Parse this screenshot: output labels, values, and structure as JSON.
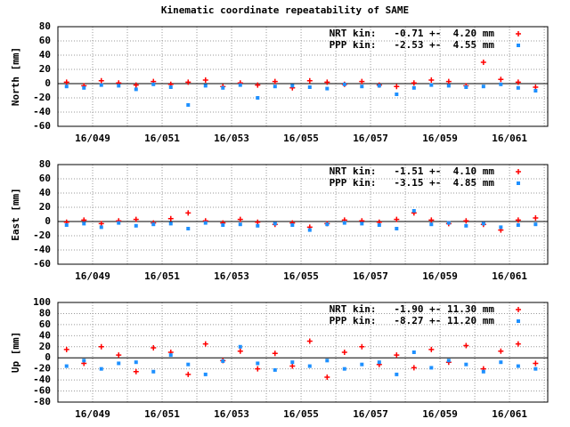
{
  "title": "Kinematic coordinate repeatability of SAME",
  "chart_data": [
    {
      "type": "scatter",
      "ylabel": "North [mm]",
      "x": [
        48.25,
        48.75,
        49.25,
        49.75,
        50.25,
        50.75,
        51.25,
        51.75,
        52.25,
        52.75,
        53.25,
        53.75,
        54.25,
        54.75,
        55.25,
        55.75,
        56.25,
        56.75,
        57.25,
        57.75,
        58.25,
        58.75,
        59.25,
        59.75,
        60.25,
        60.75,
        61.25,
        61.75
      ],
      "xlim": [
        48,
        62.1
      ],
      "xticks": [
        {
          "value": 49,
          "label": "16/049"
        },
        {
          "value": 51,
          "label": "16/051"
        },
        {
          "value": 53,
          "label": "16/053"
        },
        {
          "value": 55,
          "label": "16/055"
        },
        {
          "value": 57,
          "label": "16/057"
        },
        {
          "value": 59,
          "label": "16/059"
        },
        {
          "value": 61,
          "label": "16/061"
        }
      ],
      "x_minor_ticks": [
        50,
        52,
        54,
        56,
        58,
        60,
        62
      ],
      "ylim": [
        -60,
        80
      ],
      "yticks": [
        -60,
        -40,
        -20,
        0,
        20,
        40,
        60,
        80
      ],
      "grid": true,
      "series": [
        {
          "name": "NRT kin:   -0.71 +-  4.20 mm",
          "color": "#ff0000",
          "marker": "plus",
          "values": [
            2,
            -3,
            4,
            1,
            -2,
            3,
            -1,
            2,
            5,
            -4,
            1,
            -2,
            3,
            -6,
            4,
            2,
            -1,
            3,
            -2,
            -4,
            1,
            5,
            3,
            -3,
            30,
            6,
            2,
            -5
          ]
        },
        {
          "name": "PPP kin:   -2.53 +-  4.55 mm",
          "color": "#1e90ff",
          "marker": "square",
          "values": [
            -4,
            -6,
            -2,
            -3,
            -8,
            -1,
            -5,
            -30,
            -3,
            -6,
            -2,
            -20,
            -4,
            -3,
            -5,
            -7,
            -1,
            -4,
            -3,
            -15,
            -6,
            -2,
            -3,
            -5,
            -4,
            -1,
            -6,
            -10
          ]
        }
      ]
    },
    {
      "type": "scatter",
      "ylabel": "East [mm]",
      "x": [
        48.25,
        48.75,
        49.25,
        49.75,
        50.25,
        50.75,
        51.25,
        51.75,
        52.25,
        52.75,
        53.25,
        53.75,
        54.25,
        54.75,
        55.25,
        55.75,
        56.25,
        56.75,
        57.25,
        57.75,
        58.25,
        58.75,
        59.25,
        59.75,
        60.25,
        60.75,
        61.25,
        61.75
      ],
      "xlim": [
        48,
        62.1
      ],
      "xticks": [
        {
          "value": 49,
          "label": "16/049"
        },
        {
          "value": 51,
          "label": "16/051"
        },
        {
          "value": 53,
          "label": "16/053"
        },
        {
          "value": 55,
          "label": "16/055"
        },
        {
          "value": 57,
          "label": "16/057"
        },
        {
          "value": 59,
          "label": "16/059"
        },
        {
          "value": 61,
          "label": "16/061"
        }
      ],
      "x_minor_ticks": [
        50,
        52,
        54,
        56,
        58,
        60,
        62
      ],
      "ylim": [
        -60,
        80
      ],
      "yticks": [
        -60,
        -40,
        -20,
        0,
        20,
        40,
        60,
        80
      ],
      "grid": true,
      "series": [
        {
          "name": "NRT kin:   -1.51 +-  4.10 mm",
          "color": "#ff0000",
          "marker": "plus",
          "values": [
            -1,
            2,
            -3,
            1,
            3,
            -2,
            4,
            12,
            1,
            -2,
            3,
            -1,
            -4,
            -2,
            -8,
            -3,
            2,
            1,
            -1,
            3,
            12,
            2,
            -3,
            1,
            -4,
            -12,
            2,
            5
          ]
        },
        {
          "name": "PPP kin:   -3.15 +-  4.85 mm",
          "color": "#1e90ff",
          "marker": "square",
          "values": [
            -5,
            -3,
            -8,
            -2,
            -6,
            -4,
            -3,
            -10,
            -2,
            -5,
            -4,
            -6,
            -3,
            -5,
            -12,
            -4,
            -2,
            -3,
            -5,
            -10,
            15,
            -4,
            -2,
            -6,
            -3,
            -8,
            -5,
            -4
          ]
        }
      ]
    },
    {
      "type": "scatter",
      "ylabel": "Up [mm]",
      "x": [
        48.25,
        48.75,
        49.25,
        49.75,
        50.25,
        50.75,
        51.25,
        51.75,
        52.25,
        52.75,
        53.25,
        53.75,
        54.25,
        54.75,
        55.25,
        55.75,
        56.25,
        56.75,
        57.25,
        57.75,
        58.25,
        58.75,
        59.25,
        59.75,
        60.25,
        60.75,
        61.25,
        61.75
      ],
      "xlim": [
        48,
        62.1
      ],
      "xticks": [
        {
          "value": 49,
          "label": "16/049"
        },
        {
          "value": 51,
          "label": "16/051"
        },
        {
          "value": 53,
          "label": "16/053"
        },
        {
          "value": 55,
          "label": "16/055"
        },
        {
          "value": 57,
          "label": "16/057"
        },
        {
          "value": 59,
          "label": "16/059"
        },
        {
          "value": 61,
          "label": "16/061"
        }
      ],
      "x_minor_ticks": [
        50,
        52,
        54,
        56,
        58,
        60,
        62
      ],
      "ylim": [
        -80,
        100
      ],
      "yticks": [
        -80,
        -60,
        -40,
        -20,
        0,
        20,
        40,
        60,
        80,
        100
      ],
      "grid": true,
      "series": [
        {
          "name": "NRT kin:   -1.90 +- 11.30 mm",
          "color": "#ff0000",
          "marker": "plus",
          "values": [
            15,
            -10,
            20,
            5,
            -25,
            18,
            10,
            -30,
            25,
            -5,
            12,
            -20,
            8,
            -15,
            30,
            -35,
            10,
            20,
            -12,
            5,
            -18,
            15,
            -8,
            22,
            -20,
            12,
            25,
            -10
          ]
        },
        {
          "name": "PPP kin:   -8.27 +- 11.20 mm",
          "color": "#1e90ff",
          "marker": "square",
          "values": [
            -15,
            -5,
            -20,
            -10,
            -8,
            -25,
            5,
            -12,
            -30,
            -6,
            20,
            -10,
            -22,
            -8,
            -15,
            -5,
            -20,
            -12,
            -8,
            -30,
            10,
            -18,
            -5,
            -12,
            -25,
            -8,
            -15,
            -20
          ]
        }
      ]
    }
  ]
}
